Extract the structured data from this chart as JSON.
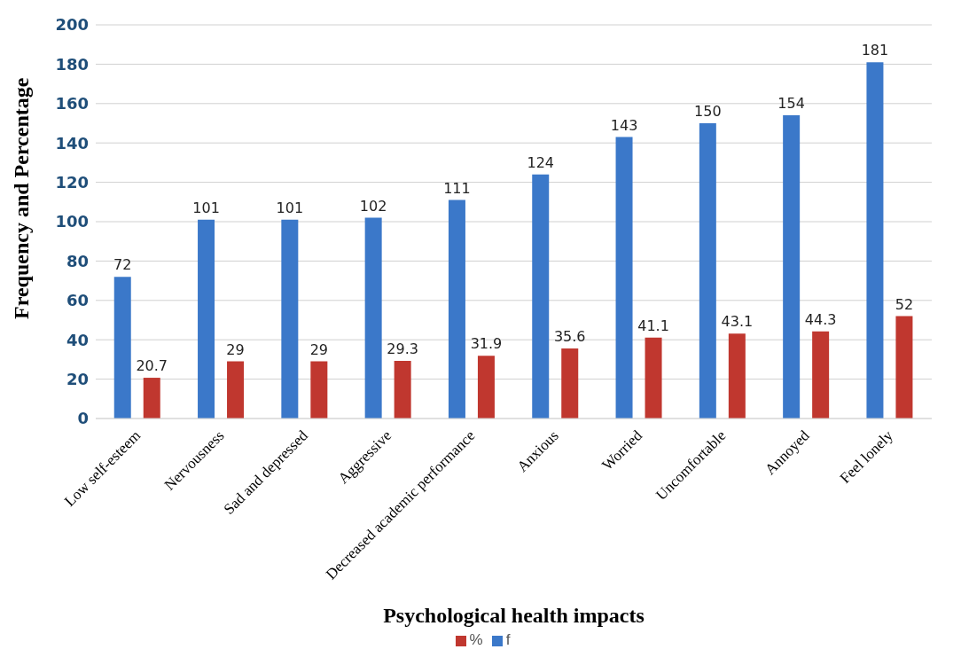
{
  "chart_data": {
    "type": "bar",
    "xlabel": "Psychological health impacts",
    "ylabel": "Frequency and Percentage",
    "categories": [
      "Low self-esteem",
      "Nervousness",
      "Sad and depressed",
      "Aggressive",
      "Decreased academic performance",
      "Anxious",
      "Worried",
      "Uncomfortable",
      "Annoyed",
      "Feel lonely"
    ],
    "series": [
      {
        "name": "f",
        "color": "#3b78c9",
        "values": [
          72,
          101,
          101,
          102,
          111,
          124,
          143,
          150,
          154,
          181
        ]
      },
      {
        "name": "%",
        "color": "#c0372f",
        "values": [
          20.7,
          29,
          29,
          29.3,
          31.9,
          35.6,
          41.1,
          43.1,
          44.3,
          52
        ]
      }
    ],
    "ylim": [
      0,
      200
    ],
    "yticks": [
      0,
      20,
      40,
      60,
      80,
      100,
      120,
      140,
      160,
      180,
      200
    ],
    "grid": "y",
    "legend": "bottom",
    "data_labels": true
  }
}
